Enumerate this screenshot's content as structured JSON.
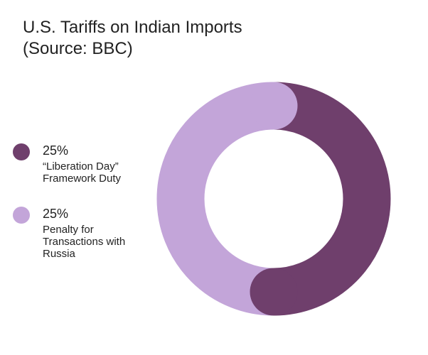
{
  "chart_data": {
    "type": "donut",
    "title": "U.S. Tariffs on Indian Imports (Source: BBC)",
    "categories": [
      "“Liberation Day” Framework Duty",
      "Penalty for Transactions with Russia"
    ],
    "values": [
      25,
      25
    ],
    "value_labels": [
      "25%",
      "25%"
    ],
    "colors": [
      "#6f3f6c",
      "#c3a5d9"
    ]
  }
}
